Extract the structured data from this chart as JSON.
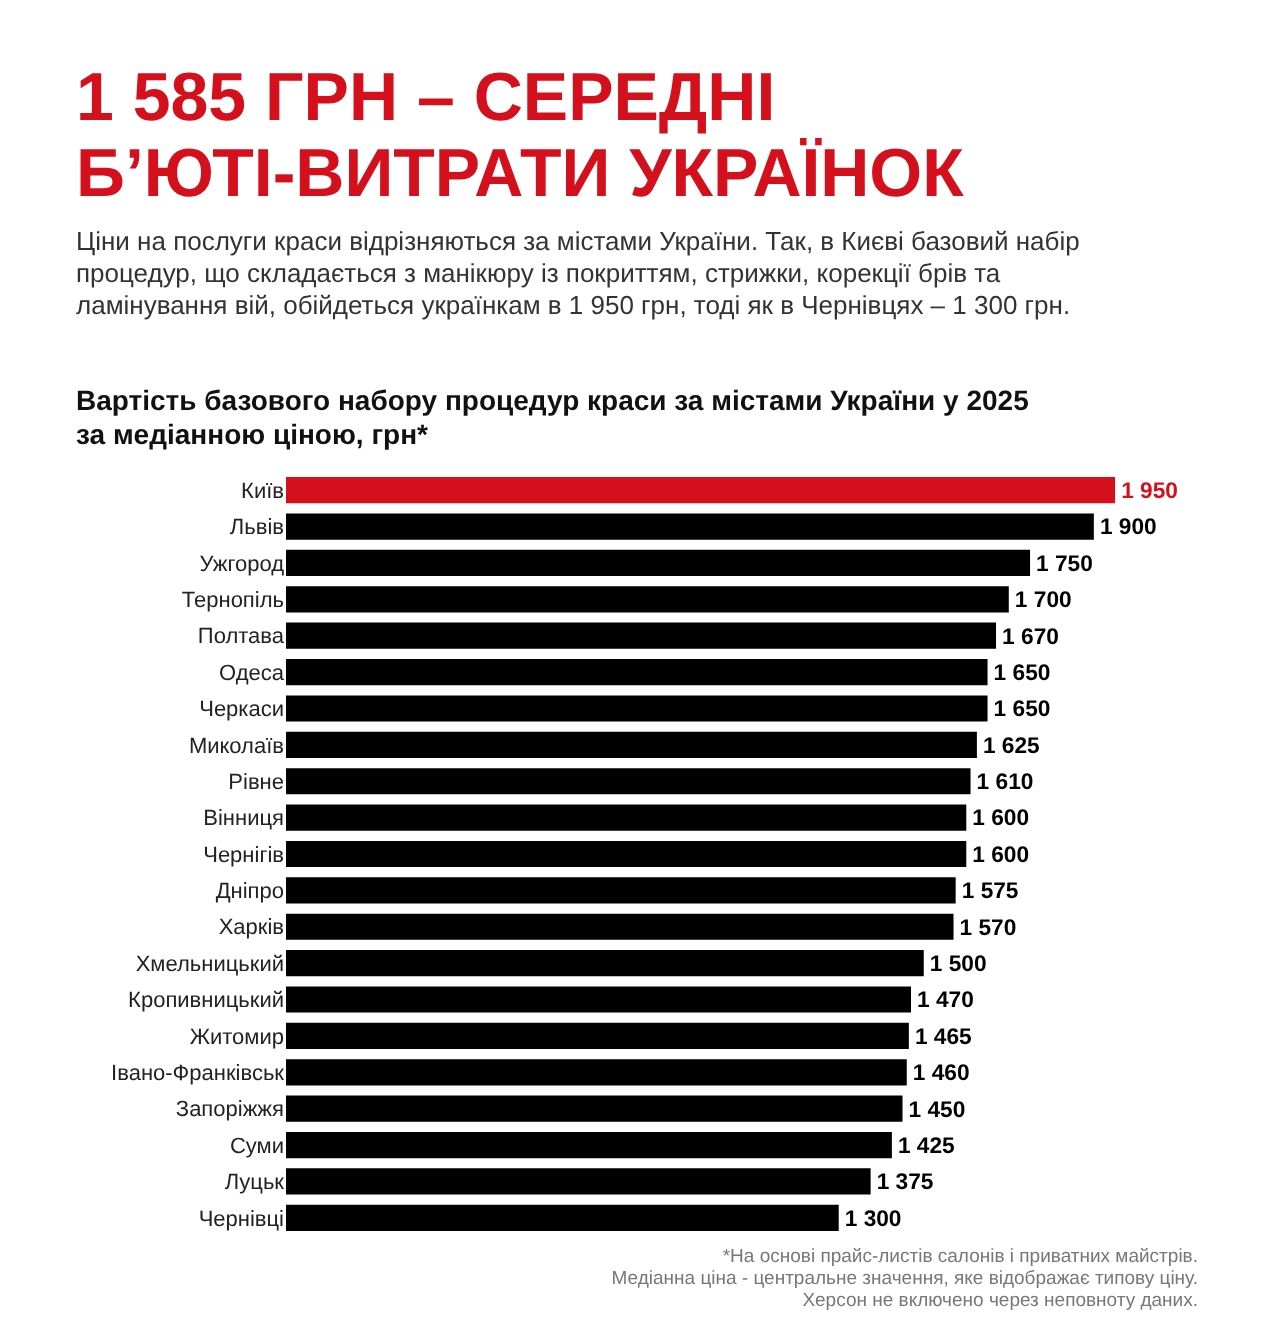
{
  "chart_data": {
    "type": "bar",
    "orientation": "horizontal",
    "title": "1 585 ГРН – СЕРЕДНІ Б’ЮТІ-ВИТРАТИ УКРАЇНОК",
    "subtitle": "Ціни на послуги краси відрізняються за містами України. Так, в Києві базовий набір процедур, що складається з манікюру із покриттям, стрижки, корекції брів та ламінування вій, обійдеться українкам в 1 950 грн, тоді як в Чернівцях – 1 300 грн.",
    "annotations": [
      "Вартість базового набору процедур краси за містами України у 2025 за медіанною ціною, грн*",
      "*На основі прайс-листів салонів і приватних майстрів.",
      "Медіанна ціна - центральне значення, яке відображає типову ціну.",
      "Херсон не включено через неповноту даних."
    ],
    "categories": [
      "Київ",
      "Львів",
      "Ужгород",
      "Тернопіль",
      "Полтава",
      "Одеса",
      "Черкаси",
      "Миколаїв",
      "Рівне",
      "Вінниця",
      "Чернігів",
      "Дніпро",
      "Харків",
      "Хмельницький",
      "Кропивницький",
      "Житомир",
      "Івано-Франківськ",
      "Запоріжжя",
      "Суми",
      "Луцьк",
      "Чернівці"
    ],
    "values": [
      1950,
      1900,
      1750,
      1700,
      1670,
      1650,
      1650,
      1625,
      1610,
      1600,
      1600,
      1575,
      1570,
      1500,
      1470,
      1465,
      1460,
      1450,
      1425,
      1375,
      1300
    ],
    "value_labels": [
      "1 950",
      "1 900",
      "1 750",
      "1 700",
      "1 670",
      "1 650",
      "1 650",
      "1 625",
      "1 610",
      "1 600",
      "1 600",
      "1 575",
      "1 570",
      "1 500",
      "1 470",
      "1 465",
      "1 460",
      "1 450",
      "1 425",
      "1 375",
      "1 300"
    ],
    "colors": [
      "#d5101d",
      "#000000",
      "#000000",
      "#000000",
      "#000000",
      "#000000",
      "#000000",
      "#000000",
      "#000000",
      "#000000",
      "#000000",
      "#000000",
      "#000000",
      "#000000",
      "#000000",
      "#000000",
      "#000000",
      "#000000",
      "#000000",
      "#000000",
      "#000000"
    ],
    "grid": false
  }
}
